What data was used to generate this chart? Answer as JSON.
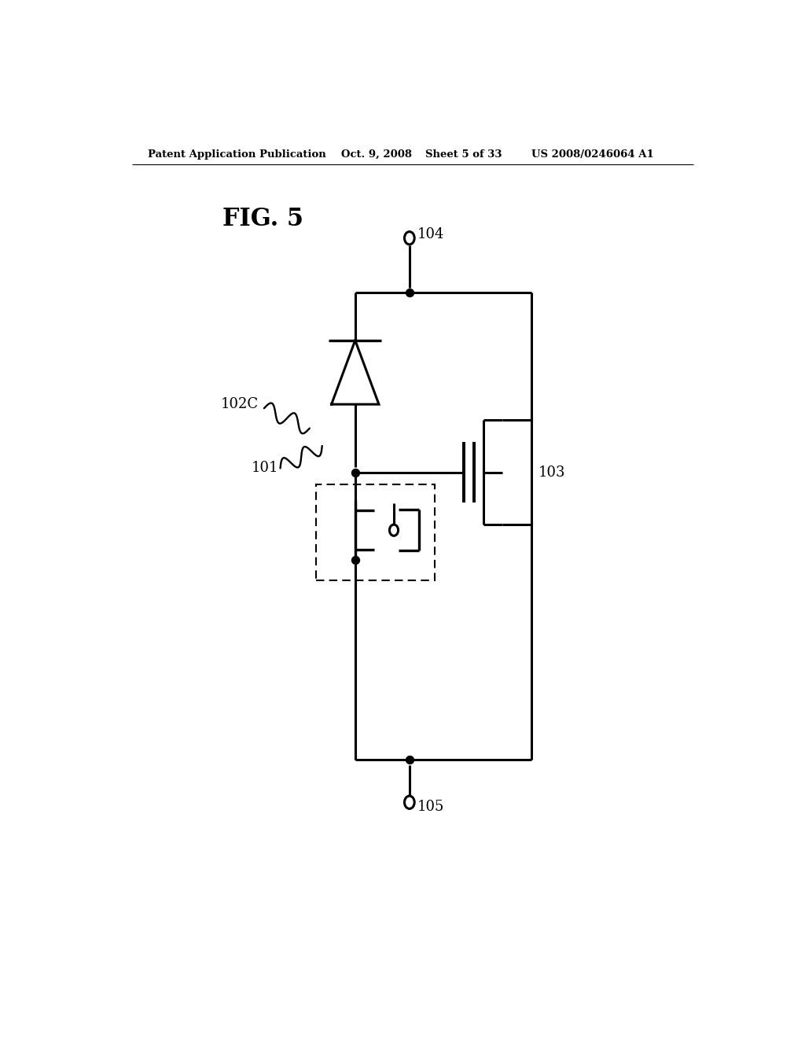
{
  "background_color": "#ffffff",
  "line_color": "#000000",
  "lw": 2.2,
  "header_text": "Patent Application Publication",
  "header_date": "Oct. 9, 2008",
  "header_sheet": "Sheet 5 of 33",
  "header_patent": "US 2008/0246064 A1",
  "fig_label": "FIG. 5",
  "dot_r": 0.006,
  "open_r": 0.007
}
